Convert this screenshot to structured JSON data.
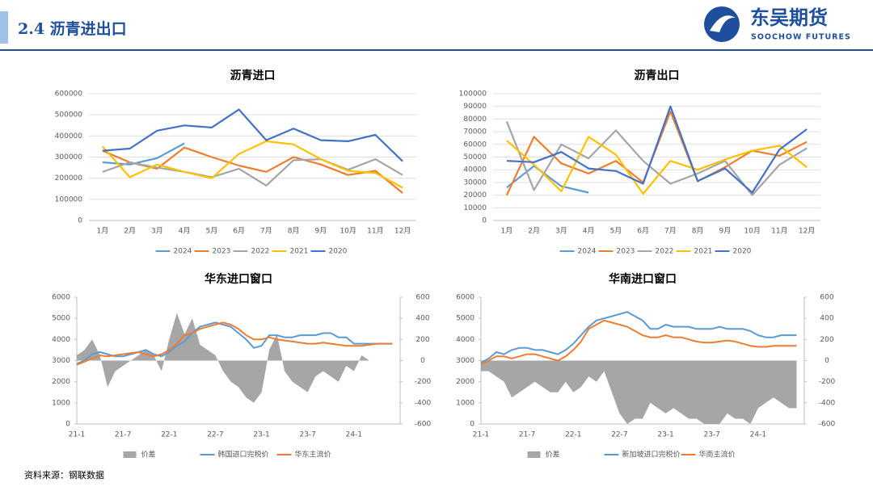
{
  "header": {
    "title": "2.4 沥青进出口",
    "logo_cn": "东吴期货",
    "logo_en": "SOOCHOW FUTURES"
  },
  "source": "资料来源：钢联数据",
  "chart_data": [
    {
      "type": "line",
      "title": "沥青进口",
      "categories": [
        "1月",
        "2月",
        "3月",
        "4月",
        "5月",
        "6月",
        "7月",
        "8月",
        "9月",
        "10月",
        "11月",
        "12月"
      ],
      "ylim": [
        0,
        600000
      ],
      "yticks": [
        0,
        100000,
        200000,
        300000,
        400000,
        500000,
        600000
      ],
      "series": [
        {
          "name": "2024",
          "color": "#5b9bd5",
          "values": [
            275000,
            265000,
            295000,
            365000,
            null,
            null,
            null,
            null,
            null,
            null,
            null,
            null
          ]
        },
        {
          "name": "2023",
          "color": "#ed7d31",
          "values": [
            330000,
            275000,
            245000,
            345000,
            300000,
            260000,
            230000,
            300000,
            265000,
            215000,
            235000,
            130000
          ]
        },
        {
          "name": "2022",
          "color": "#a5a5a5",
          "values": [
            230000,
            275000,
            250000,
            230000,
            205000,
            245000,
            165000,
            285000,
            290000,
            240000,
            290000,
            215000
          ]
        },
        {
          "name": "2021",
          "color": "#ffc000",
          "values": [
            350000,
            205000,
            265000,
            230000,
            200000,
            315000,
            375000,
            360000,
            290000,
            235000,
            225000,
            155000
          ]
        },
        {
          "name": "2020",
          "color": "#4472c4",
          "values": [
            330000,
            340000,
            425000,
            450000,
            440000,
            525000,
            380000,
            435000,
            380000,
            375000,
            405000,
            280000
          ]
        }
      ]
    },
    {
      "type": "line",
      "title": "沥青出口",
      "categories": [
        "1月",
        "2月",
        "3月",
        "4月",
        "5月",
        "6月",
        "7月",
        "8月",
        "9月",
        "10月",
        "11月",
        "12月"
      ],
      "ylim": [
        0,
        100000
      ],
      "yticks": [
        0,
        10000,
        20000,
        30000,
        40000,
        50000,
        60000,
        70000,
        80000,
        90000,
        100000
      ],
      "series": [
        {
          "name": "2024",
          "color": "#5b9bd5",
          "values": [
            26000,
            43000,
            27000,
            22000,
            null,
            null,
            null,
            null,
            null,
            null,
            null,
            null
          ]
        },
        {
          "name": "2023",
          "color": "#ed7d31",
          "values": [
            20000,
            66000,
            45000,
            37000,
            47000,
            30000,
            86000,
            31000,
            42000,
            55000,
            51000,
            62000
          ]
        },
        {
          "name": "2022",
          "color": "#a5a5a5",
          "values": [
            78000,
            24000,
            60000,
            49000,
            71000,
            47000,
            29000,
            37000,
            47000,
            20000,
            44000,
            57000
          ]
        },
        {
          "name": "2021",
          "color": "#ffc000",
          "values": [
            63000,
            44000,
            23000,
            66000,
            52000,
            21000,
            47000,
            40000,
            48000,
            55000,
            59000,
            42000
          ]
        },
        {
          "name": "2020",
          "color": "#4472c4",
          "values": [
            47000,
            46000,
            54000,
            41000,
            39000,
            29000,
            90000,
            31000,
            41000,
            22000,
            56000,
            72000
          ]
        }
      ]
    },
    {
      "type": "combo",
      "title": "华东进口窗口",
      "categories": [
        "21-1",
        null,
        null,
        null,
        null,
        null,
        "21-7",
        null,
        null,
        null,
        null,
        null,
        "22-1",
        null,
        null,
        null,
        null,
        null,
        "22-7",
        null,
        null,
        null,
        null,
        null,
        "23-1",
        null,
        null,
        null,
        null,
        null,
        "23-7",
        null,
        null,
        null,
        null,
        null,
        "24-1",
        null,
        null,
        null,
        null,
        null
      ],
      "ylim": [
        0,
        6000
      ],
      "yticks": [
        0,
        1000,
        2000,
        3000,
        4000,
        5000,
        6000
      ],
      "y2lim": [
        -600,
        600
      ],
      "y2ticks": [
        -600,
        -400,
        -200,
        0,
        200,
        400,
        600
      ],
      "series": [
        {
          "name": "价差",
          "type": "area",
          "axis": "y2",
          "color": "#a6a6a6",
          "values": [
            50,
            100,
            200,
            50,
            -250,
            -100,
            -50,
            0,
            50,
            100,
            50,
            -100,
            200,
            450,
            250,
            400,
            150,
            100,
            50,
            -100,
            -200,
            -250,
            -350,
            -400,
            -300,
            100,
            250,
            -100,
            -200,
            -250,
            -300,
            -150,
            -100,
            -150,
            -200,
            -50,
            -100,
            50,
            0,
            0,
            0,
            0
          ]
        },
        {
          "name": "韩国进口完税价",
          "type": "line",
          "color": "#5b9bd5",
          "values": [
            2850,
            3000,
            3300,
            3400,
            3300,
            3200,
            3200,
            3300,
            3400,
            3500,
            3300,
            3200,
            3400,
            3700,
            3900,
            4300,
            4600,
            4700,
            4800,
            4700,
            4600,
            4300,
            4000,
            3600,
            3700,
            4200,
            4200,
            4100,
            4100,
            4200,
            4200,
            4200,
            4300,
            4300,
            4100,
            4100,
            3800,
            3800,
            3800,
            3800,
            3800,
            3800
          ]
        },
        {
          "name": "华东主流价",
          "type": "line",
          "color": "#ed7d31",
          "values": [
            2800,
            2950,
            3100,
            3250,
            3200,
            3250,
            3300,
            3350,
            3400,
            3300,
            3200,
            3300,
            3500,
            3800,
            4200,
            4300,
            4500,
            4600,
            4700,
            4800,
            4700,
            4500,
            4200,
            4000,
            4000,
            4100,
            4000,
            3950,
            3900,
            3850,
            3800,
            3800,
            3850,
            3800,
            3750,
            3700,
            3700,
            3700,
            3750,
            3800,
            3800,
            3800
          ]
        }
      ]
    },
    {
      "type": "combo",
      "title": "华南进口窗口",
      "categories": [
        "21-1",
        null,
        null,
        null,
        null,
        null,
        "21-7",
        null,
        null,
        null,
        null,
        null,
        "22-1",
        null,
        null,
        null,
        null,
        null,
        "22-7",
        null,
        null,
        null,
        null,
        null,
        "23-1",
        null,
        null,
        null,
        null,
        null,
        "23-7",
        null,
        null,
        null,
        null,
        null,
        "24-1",
        null,
        null,
        null,
        null,
        null
      ],
      "ylim": [
        0,
        6000
      ],
      "yticks": [
        0,
        1000,
        2000,
        3000,
        4000,
        5000,
        6000
      ],
      "y2lim": [
        -600,
        600
      ],
      "y2ticks": [
        -600,
        -400,
        -200,
        0,
        200,
        400,
        600
      ],
      "series": [
        {
          "name": "价差",
          "type": "area",
          "axis": "y2",
          "color": "#a6a6a6",
          "values": [
            -100,
            -100,
            -150,
            -200,
            -350,
            -300,
            -250,
            -200,
            -250,
            -300,
            -300,
            -200,
            -300,
            -250,
            -150,
            -200,
            -100,
            -300,
            -500,
            -600,
            -550,
            -550,
            -400,
            -450,
            -500,
            -450,
            -500,
            -550,
            -550,
            -600,
            -600,
            -600,
            -500,
            -550,
            -550,
            -600,
            -450,
            -400,
            -350,
            -400,
            -450,
            -450
          ]
        },
        {
          "name": "新加坡进口完税价",
          "type": "line",
          "color": "#5b9bd5",
          "values": [
            2900,
            3100,
            3400,
            3300,
            3500,
            3600,
            3600,
            3500,
            3500,
            3400,
            3300,
            3500,
            3800,
            4200,
            4600,
            4900,
            5000,
            5100,
            5200,
            5300,
            5100,
            4900,
            4500,
            4500,
            4700,
            4600,
            4600,
            4600,
            4500,
            4500,
            4500,
            4600,
            4500,
            4500,
            4500,
            4400,
            4200,
            4100,
            4100,
            4200,
            4200,
            4200
          ]
        },
        {
          "name": "华南主流价",
          "type": "line",
          "color": "#ed7d31",
          "values": [
            2800,
            3000,
            3200,
            3200,
            3100,
            3200,
            3300,
            3300,
            3200,
            3100,
            3000,
            3200,
            3500,
            3900,
            4500,
            4700,
            4900,
            4800,
            4700,
            4600,
            4400,
            4200,
            4100,
            4100,
            4200,
            4100,
            4100,
            4000,
            3900,
            3850,
            3850,
            3900,
            3950,
            3900,
            3800,
            3700,
            3650,
            3650,
            3700,
            3700,
            3700,
            3700
          ]
        }
      ]
    }
  ]
}
